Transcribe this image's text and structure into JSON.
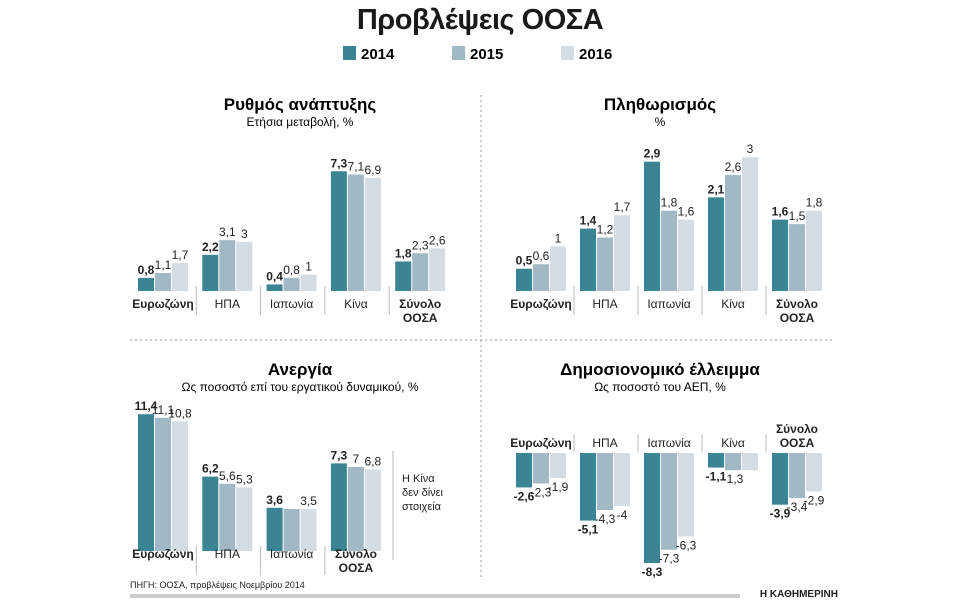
{
  "title": "Προβλέψεις ΟΟΣΑ",
  "legend": [
    "2014",
    "2015",
    "2016"
  ],
  "colors": {
    "2014": "#3a8494",
    "2015": "#a1b9c4",
    "2016": "#d3dde3"
  },
  "source": "ΠΗΓΗ: ΟΟΣΑ, προβλέψεις Νοεμβρίου 2014",
  "publisher": "Η ΚΑΘΗΜΕΡΙΝΗ",
  "china_note": [
    "Η Κίνα",
    "δεν δίνει",
    "στοιχεία"
  ],
  "chart_data": [
    {
      "type": "bar",
      "title": "Ρυθμός ανάπτυξης",
      "subtitle": "Ετήσια μεταβολή, %",
      "categories": [
        "Ευρωζώνη",
        "ΗΠΑ",
        "Ιαπωνία",
        "Κίνα",
        "Σύνολο ΟΟΣΑ"
      ],
      "series": [
        {
          "name": "2014",
          "values": [
            0.8,
            2.2,
            0.4,
            7.3,
            1.8
          ],
          "labels": [
            "0,8",
            "2,2",
            "0,4",
            "7,3",
            "1,8"
          ]
        },
        {
          "name": "2015",
          "values": [
            1.1,
            3.1,
            0.8,
            7.1,
            2.3
          ],
          "labels": [
            "1,1",
            "3,1",
            "0,8",
            "7,1",
            "2,3"
          ]
        },
        {
          "name": "2016",
          "values": [
            1.7,
            3.0,
            1.0,
            6.9,
            2.6
          ],
          "labels": [
            "1,7",
            "3",
            "1",
            "6,9",
            "2,6"
          ]
        }
      ]
    },
    {
      "type": "bar",
      "title": "Πληθωρισμός",
      "subtitle": "%",
      "categories": [
        "Ευρωζώνη",
        "ΗΠΑ",
        "Ιαπωνία",
        "Κίνα",
        "Σύνολο ΟΟΣΑ"
      ],
      "series": [
        {
          "name": "2014",
          "values": [
            0.5,
            1.4,
            2.9,
            2.1,
            1.6
          ],
          "labels": [
            "0,5",
            "1,4",
            "2,9",
            "2,1",
            "1,6"
          ]
        },
        {
          "name": "2015",
          "values": [
            0.6,
            1.2,
            1.8,
            2.6,
            1.5
          ],
          "labels": [
            "0,6",
            "1,2",
            "1,8",
            "2,6",
            "1,5"
          ]
        },
        {
          "name": "2016",
          "values": [
            1.0,
            1.7,
            1.6,
            3.0,
            1.8
          ],
          "labels": [
            "1",
            "1,7",
            "1,6",
            "3",
            "1,8"
          ]
        }
      ]
    },
    {
      "type": "bar",
      "title": "Ανεργία",
      "subtitle": "Ως ποσοστό επί του εργατικού δυναμικού, %",
      "categories": [
        "Ευρωζώνη",
        "ΗΠΑ",
        "Ιαπωνία",
        "Σύνολο ΟΟΣΑ"
      ],
      "series": [
        {
          "name": "2014",
          "values": [
            11.4,
            6.2,
            3.6,
            7.3
          ],
          "labels": [
            "11,4",
            "6,2",
            "3,6",
            "7,3"
          ]
        },
        {
          "name": "2015",
          "values": [
            11.1,
            5.6,
            3.5,
            7.0
          ],
          "labels": [
            "11,1",
            "5,6",
            "",
            "7"
          ]
        },
        {
          "name": "2016",
          "values": [
            10.8,
            5.3,
            3.5,
            6.8
          ],
          "labels": [
            "10,8",
            "5,3",
            "3,5",
            "6,8"
          ]
        }
      ]
    },
    {
      "type": "bar",
      "title": "Δημοσιονομικό έλλειμμα",
      "subtitle": "Ως ποσοστό του ΑΕΠ, %",
      "categories": [
        "Ευρωζώνη",
        "ΗΠΑ",
        "Ιαπωνία",
        "Κίνα",
        "Σύνολο ΟΟΣΑ"
      ],
      "series": [
        {
          "name": "2014",
          "values": [
            -2.6,
            -5.1,
            -8.3,
            -1.1,
            -3.9
          ],
          "labels": [
            "-2,6",
            "-5,1",
            "-8,3",
            "-1,1",
            "-3,9"
          ]
        },
        {
          "name": "2015",
          "values": [
            -2.3,
            -4.3,
            -7.3,
            -1.3,
            -3.4
          ],
          "labels": [
            "-2,3",
            "-4,3",
            "-7,3",
            "-1,3",
            "-3,4"
          ]
        },
        {
          "name": "2016",
          "values": [
            -1.9,
            -4.0,
            -6.3,
            -1.3,
            -2.9
          ],
          "labels": [
            "-1,9",
            "-4",
            "-6,3",
            "",
            "-2,9"
          ]
        }
      ]
    }
  ]
}
